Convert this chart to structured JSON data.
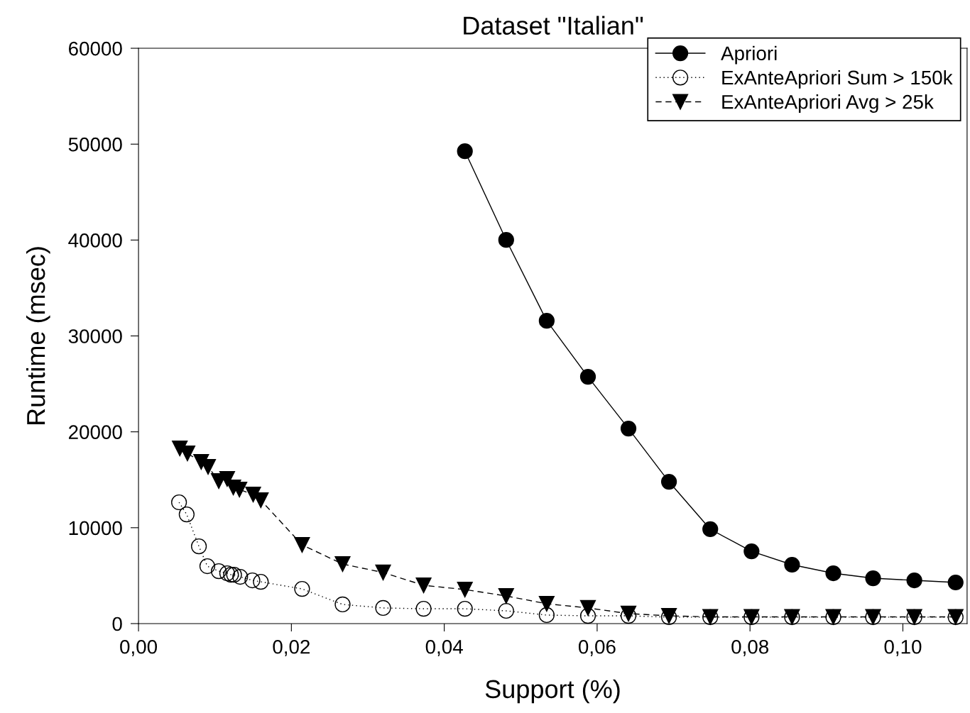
{
  "chart_data": {
    "type": "line",
    "title": "Dataset \"Italian\"",
    "xlabel": "Support (%)",
    "ylabel": "Runtime (msec)",
    "xlim": [
      0,
      0.1084
    ],
    "xticks": [
      {
        "value": 0,
        "label": "0,00"
      },
      {
        "value": 0.02,
        "label": "0,02"
      },
      {
        "value": 0.04,
        "label": "0,04"
      },
      {
        "value": 0.06,
        "label": "0,06"
      },
      {
        "value": 0.08,
        "label": "0,08"
      },
      {
        "value": 0.1,
        "label": "0,10"
      }
    ],
    "ylim": [
      0,
      60000
    ],
    "yticks": [
      0,
      10000,
      20000,
      30000,
      40000,
      50000,
      60000
    ],
    "grid": false,
    "legend": "top right",
    "series": [
      {
        "name": "Apriori",
        "color": "#000000",
        "marker": "circle",
        "line_style": "solid",
        "x": [
          0.0427,
          0.0481,
          0.0534,
          0.0588,
          0.0641,
          0.0694,
          0.0748,
          0.0802,
          0.0855,
          0.0909,
          0.0961,
          0.1015,
          0.1069
        ],
        "values": [
          49260,
          40010,
          31580,
          25740,
          20340,
          14790,
          9840,
          7540,
          6140,
          5250,
          4730,
          4510,
          4290
        ]
      },
      {
        "name": "ExAnteApriori Sum > 150k",
        "color": "#000000",
        "marker": "circle",
        "line_style": "dotted",
        "x": [
          0.0053,
          0.0063,
          0.0079,
          0.009,
          0.0105,
          0.0116,
          0.0121,
          0.0125,
          0.0133,
          0.0149,
          0.016,
          0.0214,
          0.0267,
          0.032,
          0.0373,
          0.0427,
          0.0481,
          0.0534,
          0.0588,
          0.0641,
          0.0694,
          0.0748,
          0.0802,
          0.0855,
          0.0909,
          0.0961,
          0.1015,
          0.1069
        ],
        "values": [
          12650,
          11390,
          8060,
          5990,
          5470,
          5250,
          5100,
          5100,
          4880,
          4510,
          4360,
          3620,
          2000,
          1630,
          1550,
          1550,
          1330,
          890,
          810,
          810,
          670,
          670,
          670,
          670,
          670,
          670,
          670,
          670
        ]
      },
      {
        "name": "ExAnteApriori Avg > 25k",
        "color": "#000000",
        "marker": "triangle",
        "line_style": "dashed",
        "x": [
          0.0054,
          0.0064,
          0.0082,
          0.0091,
          0.0105,
          0.0116,
          0.0124,
          0.0132,
          0.015,
          0.016,
          0.0214,
          0.0267,
          0.032,
          0.0373,
          0.0427,
          0.0481,
          0.0534,
          0.0588,
          0.0641,
          0.0694,
          0.0748,
          0.0802,
          0.0855,
          0.0909,
          0.0961,
          0.1015,
          0.1069
        ],
        "values": [
          18270,
          17750,
          16860,
          16350,
          14870,
          15090,
          14200,
          13980,
          13460,
          12870,
          8210,
          6210,
          5330,
          3990,
          3550,
          2880,
          2070,
          1630,
          1040,
          810,
          700,
          700,
          700,
          700,
          700,
          700,
          700
        ]
      }
    ]
  }
}
